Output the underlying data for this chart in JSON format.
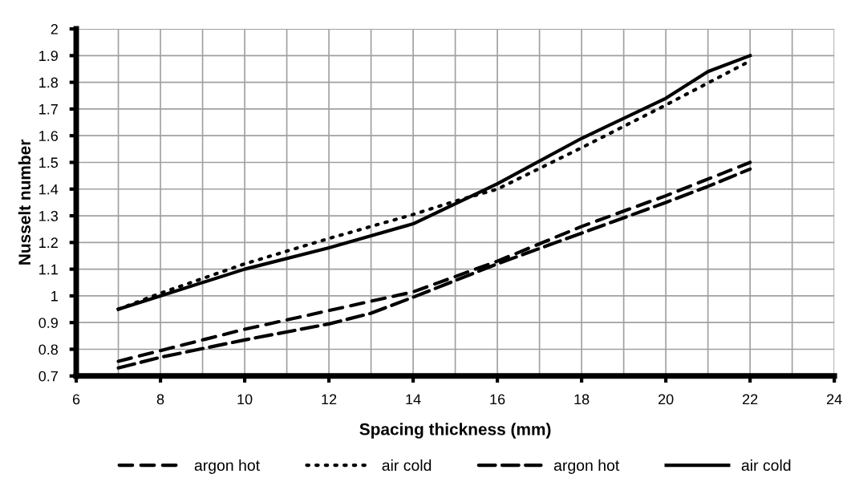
{
  "chart_data": {
    "type": "line",
    "xlabel": "Spacing thickness (mm)",
    "ylabel": "Nusselt number",
    "xlim": [
      6,
      24
    ],
    "xticks": [
      6,
      {
        "value": 7,
        "label": null
      },
      8,
      {
        "value": 9,
        "label": null
      },
      10,
      {
        "value": 11,
        "label": null
      },
      12,
      {
        "value": 13,
        "label": null
      },
      14,
      {
        "value": 15,
        "label": null
      },
      16,
      {
        "value": 17,
        "label": null
      },
      18,
      {
        "value": 19,
        "label": null
      },
      20,
      {
        "value": 21,
        "label": null
      },
      22,
      {
        "value": 23,
        "label": null
      },
      24
    ],
    "ylim": [
      0.7,
      2
    ],
    "yticks": [
      0.7,
      0.8,
      0.9,
      1,
      1.1,
      1.2,
      1.3,
      1.4,
      1.5,
      1.6,
      1.7,
      1.8,
      1.9,
      2
    ],
    "grid": true,
    "legend": "bottom",
    "marker": "none",
    "series": [
      {
        "name": "argon hot",
        "color": "#000000",
        "line_style": "dashed",
        "x": [
          7,
          8,
          10,
          12,
          14,
          16,
          18,
          20,
          22
        ],
        "values": [
          0.755,
          0.795,
          0.875,
          0.945,
          1.015,
          1.13,
          1.26,
          1.375,
          1.5
        ]
      },
      {
        "name": "air cold",
        "color": "#000000",
        "line_style": "dotted",
        "x": [
          7,
          8,
          10,
          12,
          14,
          15,
          16,
          18,
          20,
          22
        ],
        "values": [
          0.95,
          1.01,
          1.12,
          1.215,
          1.305,
          1.355,
          1.4,
          1.555,
          1.715,
          1.88
        ]
      },
      {
        "name": "argon hot",
        "color": "#000000",
        "line_style": "longdash",
        "x": [
          7,
          8,
          10,
          12,
          13,
          14,
          16,
          18,
          20,
          21,
          22
        ],
        "values": [
          0.73,
          0.77,
          0.835,
          0.895,
          0.935,
          0.995,
          1.12,
          1.235,
          1.35,
          1.41,
          1.475
        ]
      },
      {
        "name": "air cold",
        "color": "#000000",
        "line_style": "solid",
        "x": [
          7,
          8,
          10,
          12,
          13,
          14,
          15,
          16,
          18,
          20,
          21,
          22
        ],
        "values": [
          0.95,
          1.0,
          1.1,
          1.18,
          1.225,
          1.27,
          1.345,
          1.42,
          1.59,
          1.74,
          1.84,
          1.9
        ]
      }
    ]
  }
}
